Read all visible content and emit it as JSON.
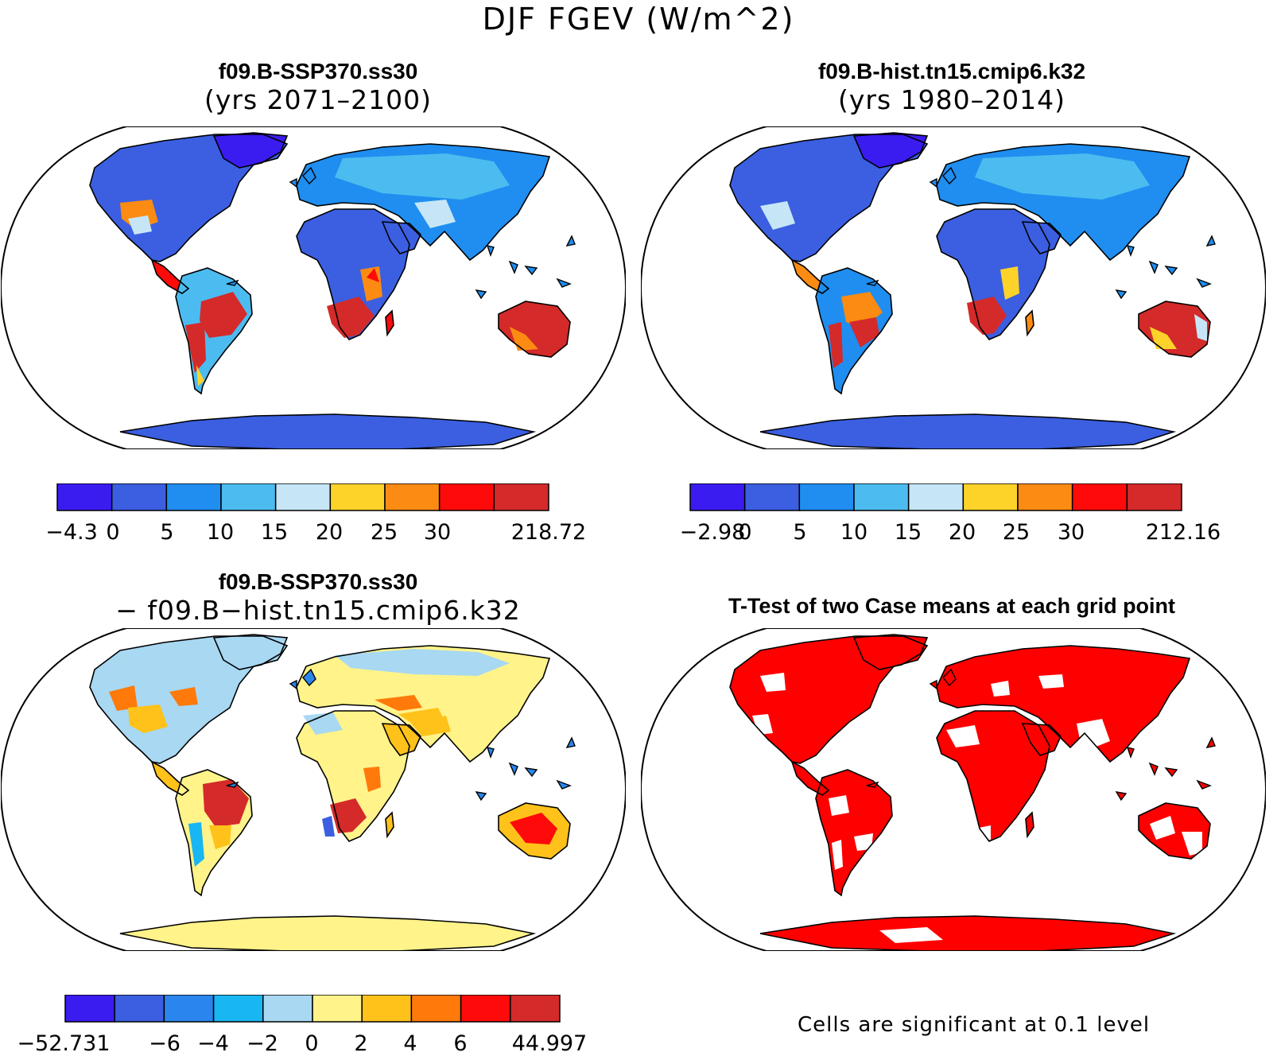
{
  "title": "DJF FGEV (W/m^2)",
  "panels": [
    {
      "id": "ssp370",
      "title_line1": "f09.B-SSP370.ss30",
      "title_line2": "(yrs 2071–2100)",
      "palette": [
        "#3a1cf0",
        "#3b5fe0",
        "#1f8ef0",
        "#4cbcf0",
        "#c6e6f7",
        "#fdd32a",
        "#fb8b12",
        "#ff0a0a",
        "#d42a2a"
      ],
      "labels": [
        "−4.3",
        "0",
        "5",
        "10",
        "15",
        "20",
        "25",
        "30",
        "218.72"
      ]
    },
    {
      "id": "hist",
      "title_line1": "f09.B-hist.tn15.cmip6.k32",
      "title_line2": "(yrs 1980–2014)",
      "palette": [
        "#3a1cf0",
        "#3b5fe0",
        "#1f8ef0",
        "#4cbcf0",
        "#c6e6f7",
        "#fdd32a",
        "#fb8b12",
        "#ff0a0a",
        "#d42a2a"
      ],
      "labels": [
        "−2.98",
        "0",
        "5",
        "10",
        "15",
        "20",
        "25",
        "30",
        "212.16"
      ]
    },
    {
      "id": "diff",
      "title_line1": "f09.B-SSP370.ss30",
      "title_line2": "− f09.B−hist.tn15.cmip6.k32",
      "palette": [
        "#3a1cf0",
        "#3b5fe0",
        "#2a86ee",
        "#18b6f2",
        "#a8d8f2",
        "#fff38a",
        "#ffc21a",
        "#ff7a0a",
        "#ff0a0a",
        "#d42a2a"
      ],
      "labels": [
        "−52.731",
        "−6",
        "−4",
        "−2",
        "0",
        "2",
        "4",
        "6",
        "44.997"
      ]
    },
    {
      "id": "ttest",
      "title": "T-Test of two Case means at each grid point",
      "note": "Cells are significant at 0.1 level"
    }
  ],
  "colors": {
    "ocean": "#ffffff",
    "coast": "#000000",
    "significant": "#ff0000"
  }
}
